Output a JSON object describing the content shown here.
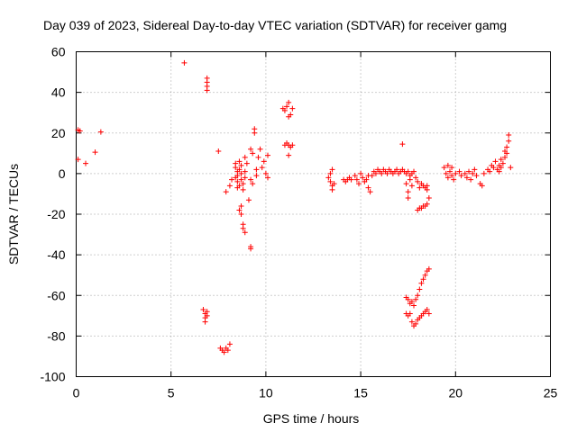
{
  "chart_data": {
    "type": "scatter",
    "title": "Day 039 of 2023, Sidereal Day-to-day VTEC variation (SDTVAR) for receiver gamg",
    "xlabel": "GPS time / hours",
    "ylabel": "SDTVAR / TECUs",
    "xlim": [
      0,
      25
    ],
    "ylim": [
      -100,
      60
    ],
    "xticks": [
      0,
      5,
      10,
      15,
      20,
      25
    ],
    "yticks": [
      -100,
      -80,
      -60,
      -40,
      -20,
      0,
      20,
      40,
      60
    ],
    "grid": true,
    "marker": "+",
    "color": "#ff0000",
    "series": [
      {
        "name": "SDTVAR",
        "points": [
          [
            0.1,
            21.5
          ],
          [
            0.2,
            21
          ],
          [
            0.1,
            7
          ],
          [
            0.5,
            5
          ],
          [
            1.0,
            10.5
          ],
          [
            1.3,
            20.5
          ],
          [
            5.7,
            54.5
          ],
          [
            6.9,
            47
          ],
          [
            6.9,
            45
          ],
          [
            6.9,
            43
          ],
          [
            6.9,
            41
          ],
          [
            6.7,
            -67
          ],
          [
            6.8,
            -69
          ],
          [
            6.8,
            -71
          ],
          [
            6.9,
            -68
          ],
          [
            6.9,
            -70
          ],
          [
            6.8,
            -73
          ],
          [
            7.5,
            11
          ],
          [
            7.6,
            -86
          ],
          [
            7.7,
            -87
          ],
          [
            7.8,
            -88
          ],
          [
            7.9,
            -86
          ],
          [
            8.0,
            -87
          ],
          [
            8.1,
            -84
          ],
          [
            7.9,
            -9
          ],
          [
            8.1,
            -6
          ],
          [
            8.2,
            -3
          ],
          [
            8.4,
            5
          ],
          [
            8.4,
            3
          ],
          [
            8.5,
            1
          ],
          [
            8.5,
            -1
          ],
          [
            8.5,
            -4
          ],
          [
            8.6,
            -6
          ],
          [
            8.6,
            2
          ],
          [
            8.6,
            6
          ],
          [
            8.7,
            0
          ],
          [
            8.7,
            -3
          ],
          [
            8.4,
            -2
          ],
          [
            8.5,
            -7
          ],
          [
            8.7,
            4
          ],
          [
            8.8,
            -5
          ],
          [
            8.8,
            -8
          ],
          [
            8.9,
            1
          ],
          [
            8.9,
            -2
          ],
          [
            8.9,
            8
          ],
          [
            9.0,
            5
          ],
          [
            8.6,
            -18
          ],
          [
            8.7,
            -16
          ],
          [
            8.7,
            -20
          ],
          [
            8.8,
            -25
          ],
          [
            8.8,
            -27
          ],
          [
            8.9,
            -29
          ],
          [
            9.1,
            -13
          ],
          [
            9.2,
            12
          ],
          [
            9.2,
            -3
          ],
          [
            9.3,
            10
          ],
          [
            9.3,
            -5
          ],
          [
            9.4,
            20
          ],
          [
            9.4,
            22
          ],
          [
            9.5,
            2
          ],
          [
            9.5,
            -1
          ],
          [
            9.6,
            8
          ],
          [
            9.7,
            12
          ],
          [
            9.8,
            3
          ],
          [
            9.9,
            6
          ],
          [
            10.0,
            0
          ],
          [
            10.1,
            9
          ],
          [
            10.1,
            -2
          ],
          [
            9.2,
            -36
          ],
          [
            9.2,
            -37
          ],
          [
            10.9,
            32
          ],
          [
            11.0,
            31
          ],
          [
            11.1,
            33
          ],
          [
            11.2,
            35
          ],
          [
            11.2,
            28
          ],
          [
            11.3,
            29
          ],
          [
            11.4,
            32
          ],
          [
            11.0,
            14
          ],
          [
            11.1,
            15
          ],
          [
            11.2,
            14
          ],
          [
            11.3,
            13
          ],
          [
            11.4,
            14
          ],
          [
            11.2,
            9
          ],
          [
            13.3,
            -2
          ],
          [
            13.4,
            -4
          ],
          [
            13.4,
            0
          ],
          [
            13.5,
            -6
          ],
          [
            13.5,
            -8
          ],
          [
            13.6,
            -5
          ],
          [
            13.5,
            2
          ],
          [
            14.1,
            -3
          ],
          [
            14.2,
            -4
          ],
          [
            14.3,
            -3
          ],
          [
            14.4,
            -2
          ],
          [
            14.5,
            -3
          ],
          [
            14.7,
            -1
          ],
          [
            14.8,
            -3
          ],
          [
            14.9,
            -5
          ],
          [
            15.0,
            0
          ],
          [
            15.1,
            -2
          ],
          [
            15.2,
            -4
          ],
          [
            15.3,
            -3
          ],
          [
            15.4,
            -1
          ],
          [
            15.4,
            -7
          ],
          [
            15.5,
            -9
          ],
          [
            15.6,
            -1
          ],
          [
            15.7,
            1
          ],
          [
            15.8,
            0
          ],
          [
            15.9,
            2
          ],
          [
            16.0,
            1
          ],
          [
            16.1,
            0
          ],
          [
            16.2,
            2
          ],
          [
            16.3,
            1
          ],
          [
            16.4,
            0
          ],
          [
            16.5,
            2
          ],
          [
            16.6,
            1
          ],
          [
            16.7,
            0
          ],
          [
            16.8,
            1
          ],
          [
            16.9,
            2
          ],
          [
            17.0,
            0
          ],
          [
            17.1,
            1
          ],
          [
            17.2,
            2
          ],
          [
            17.3,
            1
          ],
          [
            17.4,
            0
          ],
          [
            17.5,
            1
          ],
          [
            17.6,
            -1
          ],
          [
            17.7,
            0
          ],
          [
            17.2,
            14.5
          ],
          [
            17.4,
            -5
          ],
          [
            17.5,
            -9
          ],
          [
            17.5,
            -12
          ],
          [
            17.6,
            -3
          ],
          [
            17.7,
            -6
          ],
          [
            17.8,
            1
          ],
          [
            17.9,
            -2
          ],
          [
            18.0,
            -4
          ],
          [
            18.1,
            -7
          ],
          [
            18.2,
            -5
          ],
          [
            18.3,
            -6
          ],
          [
            18.4,
            -7
          ],
          [
            18.5,
            -6
          ],
          [
            18.5,
            -8
          ],
          [
            18.0,
            -18
          ],
          [
            18.1,
            -17
          ],
          [
            18.2,
            -17
          ],
          [
            18.3,
            -16
          ],
          [
            18.4,
            -16
          ],
          [
            18.5,
            -15
          ],
          [
            18.6,
            -12
          ],
          [
            17.4,
            -61
          ],
          [
            17.5,
            -62
          ],
          [
            17.6,
            -64
          ],
          [
            17.7,
            -63
          ],
          [
            17.8,
            -65
          ],
          [
            17.9,
            -62
          ],
          [
            18.0,
            -60
          ],
          [
            18.1,
            -57
          ],
          [
            18.2,
            -54
          ],
          [
            18.3,
            -52
          ],
          [
            18.4,
            -50
          ],
          [
            18.5,
            -48
          ],
          [
            18.6,
            -47
          ],
          [
            17.4,
            -69
          ],
          [
            17.5,
            -70
          ],
          [
            17.6,
            -69
          ],
          [
            17.7,
            -73
          ],
          [
            17.8,
            -75
          ],
          [
            17.9,
            -74
          ],
          [
            18.0,
            -72
          ],
          [
            18.1,
            -71
          ],
          [
            18.2,
            -70
          ],
          [
            18.3,
            -69
          ],
          [
            18.4,
            -68
          ],
          [
            18.5,
            -67
          ],
          [
            18.6,
            -69
          ],
          [
            19.4,
            3
          ],
          [
            19.5,
            0
          ],
          [
            19.6,
            -2
          ],
          [
            19.6,
            4
          ],
          [
            19.7,
            1
          ],
          [
            19.8,
            -1
          ],
          [
            19.8,
            3
          ],
          [
            19.9,
            -3
          ],
          [
            20.0,
            0
          ],
          [
            20.2,
            1
          ],
          [
            20.3,
            -1
          ],
          [
            20.5,
            0
          ],
          [
            20.6,
            -2
          ],
          [
            20.7,
            1
          ],
          [
            20.8,
            -3
          ],
          [
            20.9,
            0
          ],
          [
            21.0,
            2
          ],
          [
            21.1,
            -1
          ],
          [
            21.3,
            -5
          ],
          [
            21.4,
            -6
          ],
          [
            21.5,
            0
          ],
          [
            21.7,
            2
          ],
          [
            21.8,
            1
          ],
          [
            21.9,
            4
          ],
          [
            22.0,
            3
          ],
          [
            22.1,
            6
          ],
          [
            22.2,
            2
          ],
          [
            22.3,
            1
          ],
          [
            22.3,
            4
          ],
          [
            22.4,
            3
          ],
          [
            22.4,
            7
          ],
          [
            22.5,
            5
          ],
          [
            22.6,
            8
          ],
          [
            22.6,
            11
          ],
          [
            22.7,
            13
          ],
          [
            22.7,
            10
          ],
          [
            22.8,
            16
          ],
          [
            22.8,
            19
          ],
          [
            22.9,
            3
          ]
        ]
      }
    ]
  }
}
